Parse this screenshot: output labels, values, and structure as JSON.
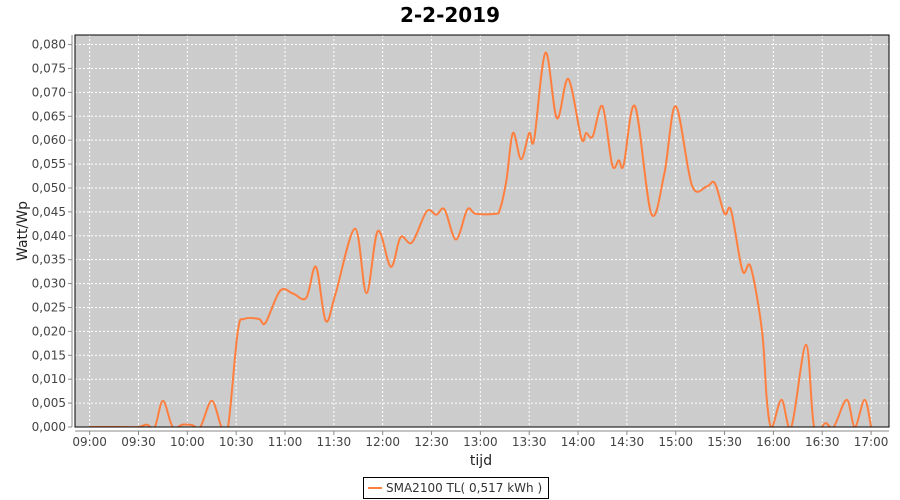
{
  "chart_data": {
    "type": "line",
    "title": "2-2-2019",
    "xlabel": "tijd",
    "ylabel": "Watt/Wp",
    "x_ticks": [
      "09:00",
      "09:30",
      "10:00",
      "10:30",
      "11:00",
      "11:30",
      "12:00",
      "12:30",
      "13:00",
      "13:30",
      "14:00",
      "14:30",
      "15:00",
      "15:30",
      "16:00",
      "16:30",
      "17:00"
    ],
    "y_ticks": [
      "0,000",
      "0,005",
      "0,010",
      "0,015",
      "0,020",
      "0,025",
      "0,030",
      "0,035",
      "0,040",
      "0,045",
      "0,050",
      "0,055",
      "0,060",
      "0,065",
      "0,070",
      "0,075",
      "0,080"
    ],
    "xlim": [
      "08:51",
      "17:11"
    ],
    "ylim": [
      0,
      0.082
    ],
    "grid": true,
    "legend_position": "bottom",
    "series": [
      {
        "name": "SMA2100 TL( 0,517 kWh )",
        "color": "#ff7f3f",
        "x": [
          "09:00",
          "09:10",
          "09:20",
          "09:30",
          "09:35",
          "09:40",
          "09:45",
          "09:51",
          "09:57",
          "10:03",
          "10:08",
          "10:15",
          "10:21",
          "10:25",
          "10:31",
          "10:35",
          "10:44",
          "10:48",
          "10:57",
          "11:05",
          "11:13",
          "11:19",
          "11:25",
          "11:31",
          "11:43",
          "11:50",
          "11:57",
          "12:05",
          "12:11",
          "12:18",
          "12:27",
          "12:33",
          "12:38",
          "12:45",
          "12:52",
          "12:57",
          "13:09",
          "13:12",
          "13:16",
          "13:20",
          "13:25",
          "13:30",
          "13:33",
          "13:40",
          "13:47",
          "13:54",
          "14:02",
          "14:05",
          "14:09",
          "14:15",
          "14:21",
          "14:25",
          "14:28",
          "14:35",
          "14:45",
          "14:53",
          "15:00",
          "15:10",
          "15:19",
          "15:24",
          "15:30",
          "15:34",
          "15:41",
          "15:46",
          "15:53",
          "15:56",
          "15:59",
          "16:05",
          "16:11",
          "16:20",
          "16:25",
          "16:32",
          "16:37",
          "16:45",
          "16:50",
          "16:56",
          "17:00"
        ],
        "y": [
          0,
          0,
          0,
          0,
          0.0005,
          0,
          0.0055,
          0,
          0.0005,
          0.0004,
          0,
          0.0055,
          0,
          0,
          0.02,
          0.0226,
          0.0226,
          0.0218,
          0.0285,
          0.0279,
          0.027,
          0.0335,
          0.0222,
          0.0278,
          0.0415,
          0.028,
          0.041,
          0.0335,
          0.0397,
          0.0386,
          0.0451,
          0.0444,
          0.0455,
          0.0392,
          0.0455,
          0.0446,
          0.0446,
          0.0455,
          0.0516,
          0.0615,
          0.056,
          0.0615,
          0.0601,
          0.0783,
          0.0646,
          0.0728,
          0.0604,
          0.0615,
          0.0608,
          0.0671,
          0.0548,
          0.0558,
          0.0548,
          0.0671,
          0.0446,
          0.053,
          0.0671,
          0.0505,
          0.0503,
          0.051,
          0.0446,
          0.0453,
          0.0327,
          0.0335,
          0.0201,
          0.0055,
          0,
          0.0057,
          0,
          0.0172,
          0,
          0.0008,
          0,
          0.0057,
          0,
          0.0057,
          0
        ]
      }
    ]
  },
  "legend": {
    "label": "SMA2100 TL( 0,517 kWh )"
  }
}
